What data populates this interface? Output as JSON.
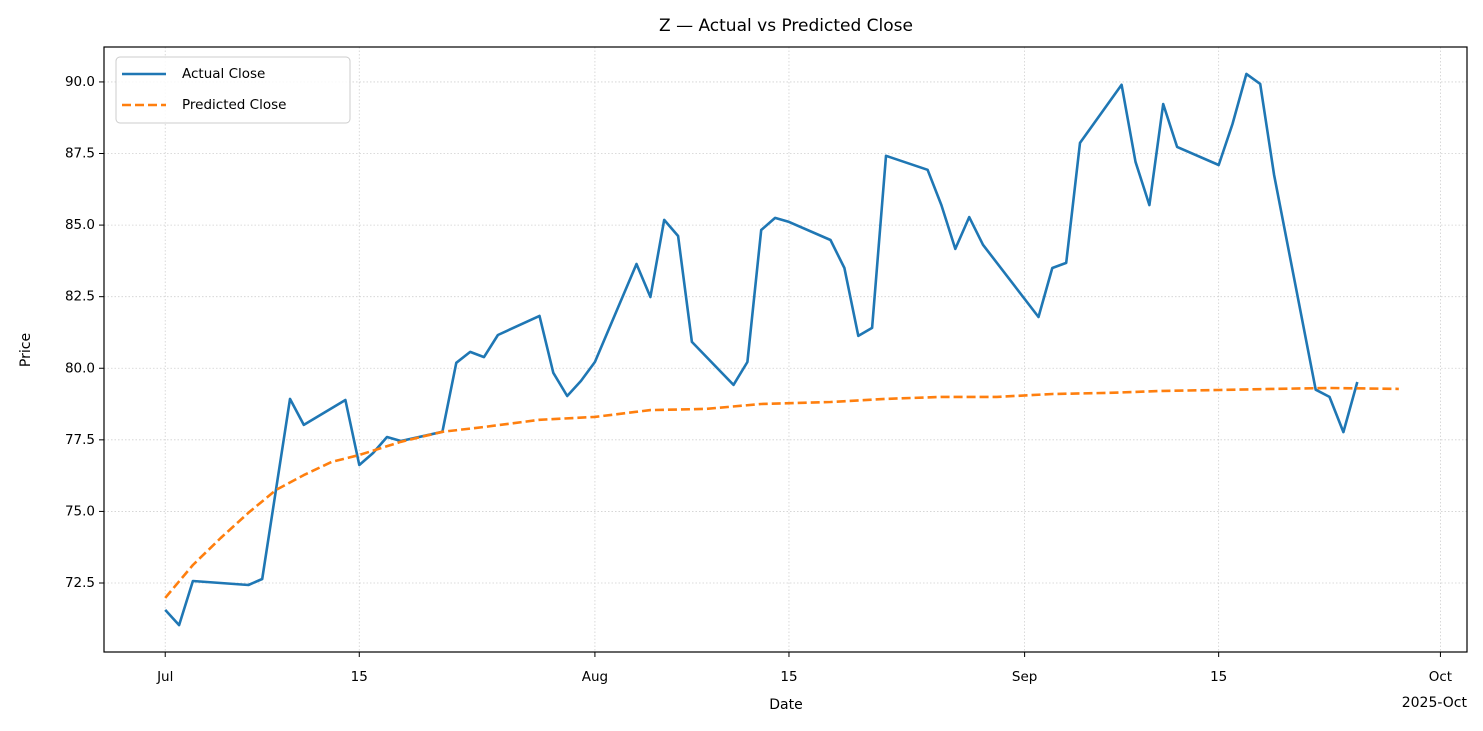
{
  "chart_data": {
    "type": "line",
    "title": "Z — Actual vs Predicted Close",
    "x_label": "Date",
    "y_label": "Price",
    "x_offset_label": "2025-Oct",
    "xlim": [
      "2025-06-26T14:00",
      "2025-10-02T22:00"
    ],
    "xticks": [
      {
        "value": "2025-07-01",
        "label": "Jul"
      },
      {
        "value": "2025-07-15",
        "label": "15"
      },
      {
        "value": "2025-08-01",
        "label": "Aug"
      },
      {
        "value": "2025-08-15",
        "label": "15"
      },
      {
        "value": "2025-09-01",
        "label": "Sep"
      },
      {
        "value": "2025-09-15",
        "label": "15"
      },
      {
        "value": "2025-10-01",
        "label": "Oct"
      }
    ],
    "ylim": [
      70.09,
      91.22
    ],
    "yticks": [
      72.5,
      {
        "value": 75,
        "label": "75.0"
      },
      77.5,
      {
        "value": 80,
        "label": "80.0"
      },
      82.5,
      {
        "value": 85,
        "label": "85.0"
      },
      87.5,
      {
        "value": 90,
        "label": "90.0"
      }
    ],
    "grid": true,
    "legend": "upper left",
    "series": [
      {
        "name": "Actual Close",
        "color": "#1f77b4",
        "style": "solid",
        "x": [
          "2025-07-01",
          "2025-07-02",
          "2025-07-03",
          "2025-07-07",
          "2025-07-08",
          "2025-07-10",
          "2025-07-11",
          "2025-07-14",
          "2025-07-15",
          "2025-07-16",
          "2025-07-17",
          "2025-07-18",
          "2025-07-21",
          "2025-07-22",
          "2025-07-23",
          "2025-07-24",
          "2025-07-25",
          "2025-07-28",
          "2025-07-29",
          "2025-07-30",
          "2025-07-31",
          "2025-08-01",
          "2025-08-04",
          "2025-08-05",
          "2025-08-06",
          "2025-08-07",
          "2025-08-08",
          "2025-08-11",
          "2025-08-12",
          "2025-08-13",
          "2025-08-14",
          "2025-08-15",
          "2025-08-18",
          "2025-08-19",
          "2025-08-20",
          "2025-08-21",
          "2025-08-22",
          "2025-08-25",
          "2025-08-26",
          "2025-08-27",
          "2025-08-28",
          "2025-08-29",
          "2025-09-02",
          "2025-09-03",
          "2025-09-04",
          "2025-09-05",
          "2025-09-08",
          "2025-09-09",
          "2025-09-10",
          "2025-09-11",
          "2025-09-12",
          "2025-09-15",
          "2025-09-16",
          "2025-09-17",
          "2025-09-18",
          "2025-09-19",
          "2025-09-22",
          "2025-09-23",
          "2025-09-24",
          "2025-09-25"
        ],
        "values": [
          71.56,
          71.03,
          72.57,
          72.43,
          72.64,
          78.93,
          78.02,
          78.89,
          76.62,
          77.04,
          77.6,
          77.46,
          77.78,
          80.19,
          80.57,
          80.39,
          81.16,
          81.83,
          79.84,
          79.03,
          79.56,
          80.22,
          83.64,
          82.49,
          85.18,
          84.62,
          80.92,
          79.42,
          80.22,
          84.83,
          85.25,
          85.11,
          84.48,
          83.5,
          81.13,
          81.41,
          87.42,
          86.93,
          85.7,
          84.17,
          85.28,
          84.31,
          81.79,
          83.5,
          83.68,
          87.87,
          89.9,
          87.21,
          85.7,
          89.23,
          87.73,
          87.1,
          88.53,
          90.28,
          89.93,
          86.75,
          79.25,
          79.0,
          77.77,
          79.52
        ]
      },
      {
        "name": "Predicted Close",
        "color": "#ff7f0e",
        "style": "dashed",
        "x": [
          "2025-07-01",
          "2025-07-03",
          "2025-07-05",
          "2025-07-07",
          "2025-07-09",
          "2025-07-11",
          "2025-07-13",
          "2025-07-15",
          "2025-07-18",
          "2025-07-21",
          "2025-07-24",
          "2025-07-28",
          "2025-08-01",
          "2025-08-05",
          "2025-08-09",
          "2025-08-13",
          "2025-08-18",
          "2025-08-22",
          "2025-08-26",
          "2025-08-30",
          "2025-09-03",
          "2025-09-07",
          "2025-09-11",
          "2025-09-15",
          "2025-09-19",
          "2025-09-23",
          "2025-09-28"
        ],
        "values": [
          71.98,
          73.13,
          74.07,
          74.95,
          75.75,
          76.27,
          76.73,
          76.97,
          77.43,
          77.78,
          77.95,
          78.2,
          78.3,
          78.54,
          78.58,
          78.75,
          78.82,
          78.93,
          79.0,
          79.0,
          79.1,
          79.14,
          79.21,
          79.24,
          79.28,
          79.31,
          79.28
        ]
      }
    ]
  }
}
